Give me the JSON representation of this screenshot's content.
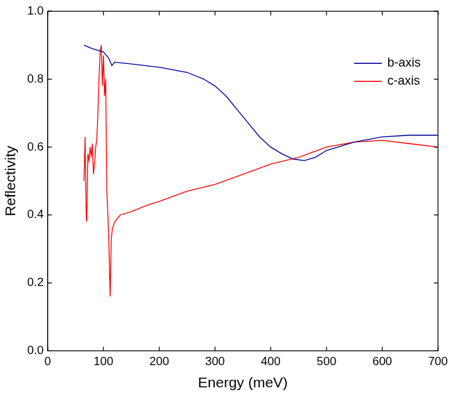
{
  "chart_data": {
    "type": "line",
    "x_label": "Energy (meV)",
    "y_label": "Reflectivity",
    "xlim": [
      0,
      700
    ],
    "xticks": [
      0,
      100,
      200,
      300,
      400,
      500,
      600,
      700
    ],
    "ylim": [
      0,
      1.0
    ],
    "yticks": [
      {
        "value": 0,
        "label": "0.0"
      },
      0.2,
      0.4,
      0.6,
      0.8,
      {
        "value": 1.0,
        "label": "1.0"
      }
    ],
    "grid": false,
    "legend": "upper right",
    "series": [
      {
        "name": "b-axis",
        "color": "#000099",
        "x": [
          65,
          80,
          100,
          110,
          115,
          120,
          150,
          200,
          250,
          280,
          300,
          320,
          340,
          360,
          380,
          400,
          420,
          440,
          460,
          480,
          500,
          550,
          600,
          650,
          700
        ],
        "values": [
          0.9,
          0.89,
          0.88,
          0.86,
          0.84,
          0.85,
          0.845,
          0.835,
          0.82,
          0.8,
          0.78,
          0.75,
          0.71,
          0.67,
          0.63,
          0.6,
          0.58,
          0.565,
          0.56,
          0.57,
          0.59,
          0.615,
          0.63,
          0.635,
          0.635
        ]
      },
      {
        "name": "c-axis",
        "color": "#ff0000",
        "x": [
          65,
          67,
          69,
          70,
          72,
          74,
          76,
          78,
          80,
          82,
          84,
          86,
          88,
          90,
          92,
          94,
          96,
          98,
          100,
          102,
          104,
          106,
          108,
          110,
          111,
          112,
          113,
          114,
          116,
          120,
          130,
          150,
          180,
          200,
          250,
          300,
          350,
          400,
          450,
          500,
          550,
          600,
          650,
          700
        ],
        "values": [
          0.5,
          0.63,
          0.4,
          0.38,
          0.58,
          0.56,
          0.6,
          0.57,
          0.61,
          0.52,
          0.55,
          0.6,
          0.62,
          0.7,
          0.8,
          0.88,
          0.9,
          0.78,
          0.87,
          0.75,
          0.8,
          0.47,
          0.4,
          0.3,
          0.22,
          0.16,
          0.25,
          0.33,
          0.36,
          0.38,
          0.4,
          0.41,
          0.43,
          0.44,
          0.47,
          0.49,
          0.52,
          0.55,
          0.57,
          0.6,
          0.615,
          0.62,
          0.61,
          0.6
        ]
      }
    ]
  }
}
